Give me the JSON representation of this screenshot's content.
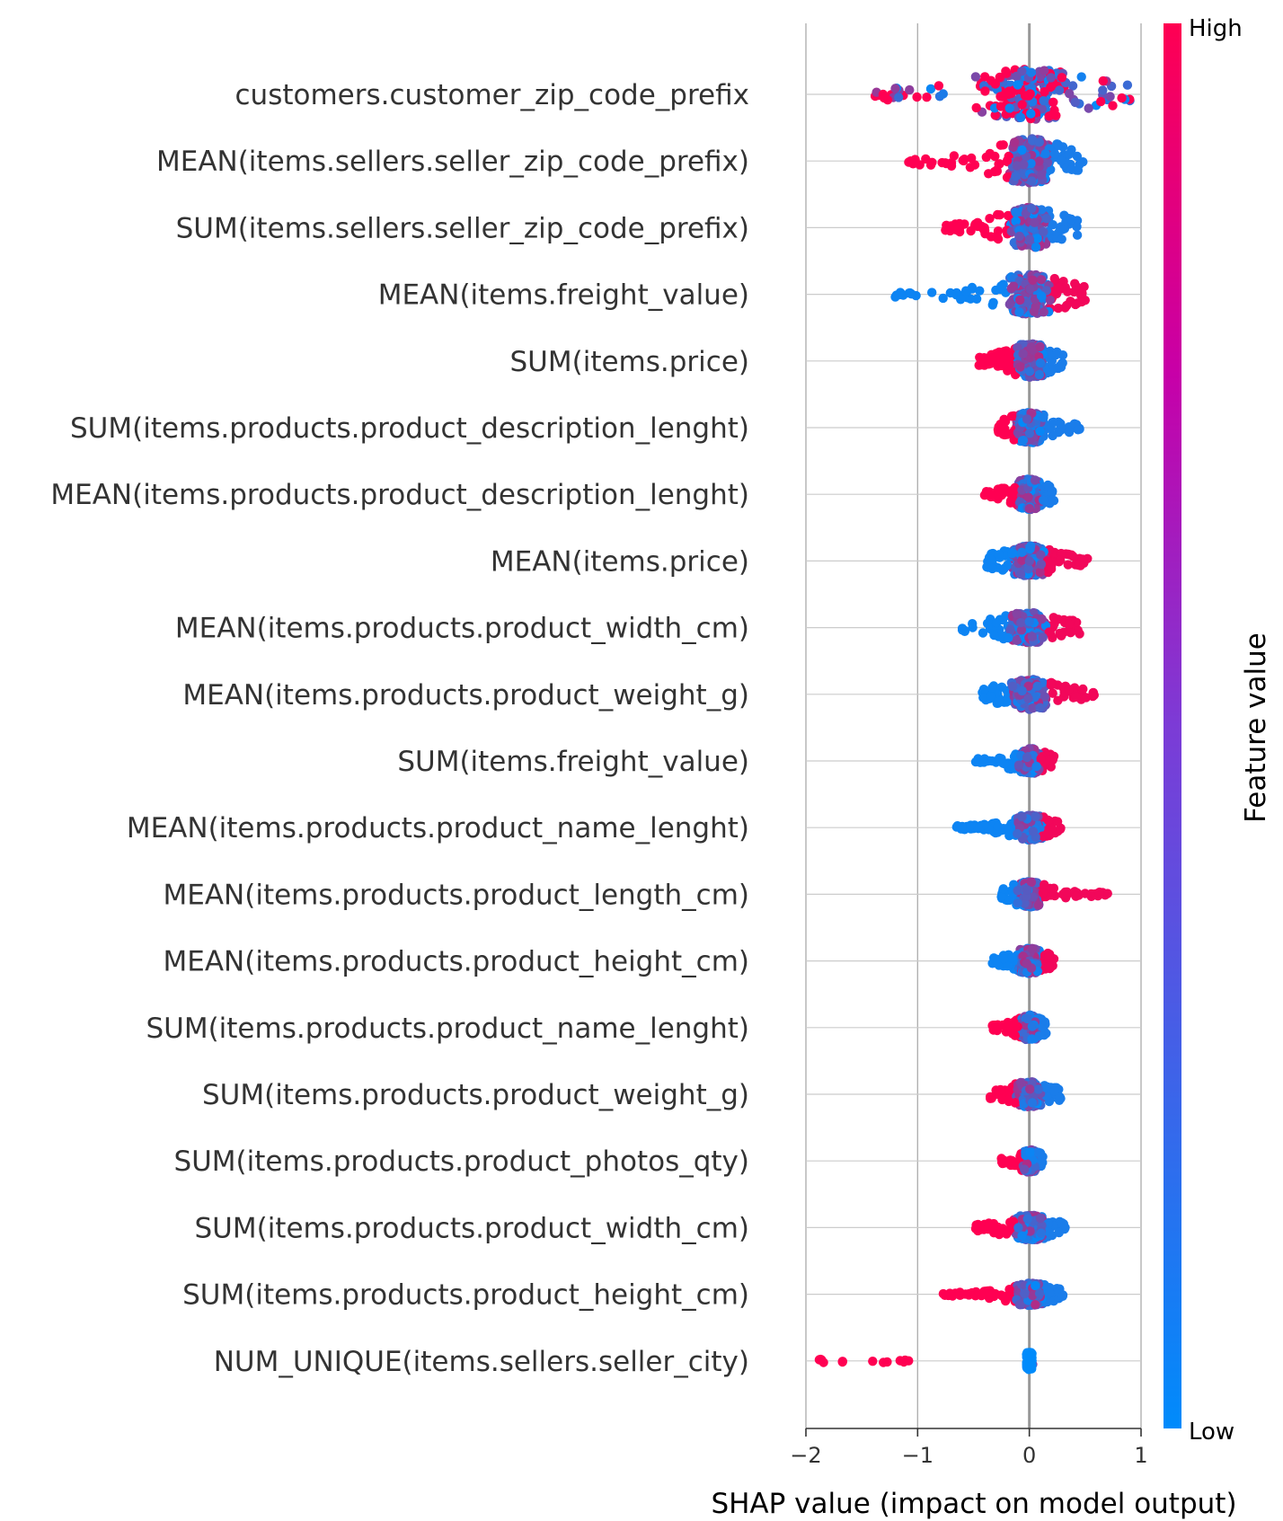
{
  "chart_data": {
    "type": "scatter",
    "subtype": "shap-beeswarm",
    "xlabel": "SHAP value (impact on model output)",
    "xlim": [
      -2.0,
      1.0
    ],
    "xticks": [
      -2,
      -1,
      0,
      1
    ],
    "xtick_labels": [
      "−2",
      "−1",
      "0",
      "1"
    ],
    "grid": true,
    "colorbar": {
      "label": "Feature value",
      "high_label": "High",
      "low_label": "Low",
      "high_color": "#ff0052",
      "low_color": "#008bfb"
    },
    "features": [
      {
        "name": "customers.customer_zip_code_prefix",
        "min": -1.38,
        "max": 0.9,
        "low_side": "mixed",
        "spread": 1.0
      },
      {
        "name": "MEAN(items.sellers.seller_zip_code_prefix)",
        "min": -1.08,
        "max": 0.48,
        "low_side": "high",
        "spread": 0.9
      },
      {
        "name": "SUM(items.sellers.seller_zip_code_prefix)",
        "min": -0.75,
        "max": 0.43,
        "low_side": "high",
        "spread": 0.8
      },
      {
        "name": "MEAN(items.freight_value)",
        "min": -1.2,
        "max": 0.5,
        "low_side": "low",
        "spread": 0.8
      },
      {
        "name": "SUM(items.price)",
        "min": -0.45,
        "max": 0.3,
        "low_side": "high",
        "spread": 0.7
      },
      {
        "name": "SUM(items.products.product_description_lenght)",
        "min": -0.28,
        "max": 0.45,
        "low_side": "high",
        "spread": 0.6
      },
      {
        "name": "MEAN(items.products.product_description_lenght)",
        "min": -0.4,
        "max": 0.22,
        "low_side": "high",
        "spread": 0.6
      },
      {
        "name": "MEAN(items.price)",
        "min": -0.38,
        "max": 0.52,
        "low_side": "low",
        "spread": 0.6
      },
      {
        "name": "MEAN(items.products.product_width_cm)",
        "min": -0.6,
        "max": 0.45,
        "low_side": "low",
        "spread": 0.6
      },
      {
        "name": "MEAN(items.products.product_weight_g)",
        "min": -0.42,
        "max": 0.58,
        "low_side": "low",
        "spread": 0.6
      },
      {
        "name": "SUM(items.freight_value)",
        "min": -0.48,
        "max": 0.22,
        "low_side": "low",
        "spread": 0.5
      },
      {
        "name": "MEAN(items.products.product_name_lenght)",
        "min": -0.65,
        "max": 0.28,
        "low_side": "low",
        "spread": 0.5
      },
      {
        "name": "MEAN(items.products.product_length_cm)",
        "min": -0.25,
        "max": 0.7,
        "low_side": "low",
        "spread": 0.5
      },
      {
        "name": "MEAN(items.products.product_height_cm)",
        "min": -0.33,
        "max": 0.22,
        "low_side": "low",
        "spread": 0.5
      },
      {
        "name": "SUM(items.products.product_name_lenght)",
        "min": -0.33,
        "max": 0.15,
        "low_side": "high",
        "spread": 0.5
      },
      {
        "name": "SUM(items.products.product_weight_g)",
        "min": -0.35,
        "max": 0.28,
        "low_side": "high",
        "spread": 0.5
      },
      {
        "name": "SUM(items.products.product_photos_qty)",
        "min": -0.25,
        "max": 0.12,
        "low_side": "high",
        "spread": 0.45
      },
      {
        "name": "SUM(items.products.product_width_cm)",
        "min": -0.48,
        "max": 0.32,
        "low_side": "high",
        "spread": 0.5
      },
      {
        "name": "SUM(items.products.product_height_cm)",
        "min": -0.77,
        "max": 0.3,
        "low_side": "high",
        "spread": 0.45
      },
      {
        "name": "NUM_UNIQUE(items.sellers.seller_city)",
        "min": -1.88,
        "max": 0.03,
        "low_side": "high",
        "spread": 0.35
      }
    ]
  }
}
